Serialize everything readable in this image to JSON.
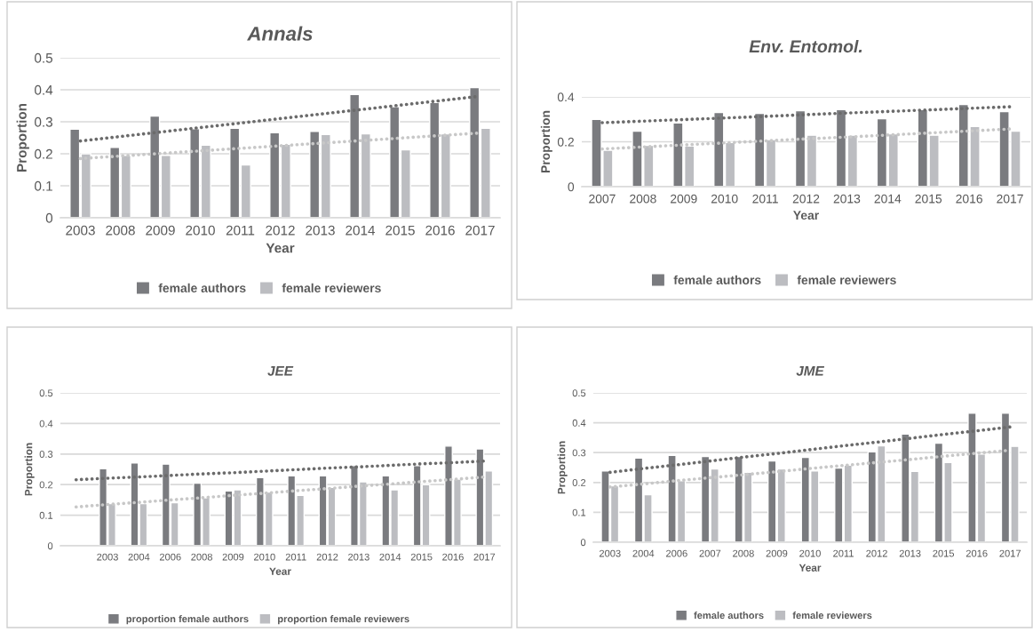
{
  "chart_data": [
    {
      "type": "bar",
      "title": "Annals",
      "xlabel": "Year",
      "ylabel": "Proportion",
      "categories": [
        "2003",
        "2008",
        "2009",
        "2010",
        "2011",
        "2012",
        "2013",
        "2014",
        "2015",
        "2016",
        "2017"
      ],
      "ylim": [
        0,
        0.5
      ],
      "yticks": [
        0,
        0.1,
        0.2,
        0.3,
        0.4,
        0.5
      ],
      "grid": "y",
      "legend": "bottom",
      "series": [
        {
          "name": "female authors",
          "color": "#7a7b7f",
          "values": [
            0.277,
            0.22,
            0.318,
            0.278,
            0.28,
            0.266,
            0.27,
            0.385,
            0.347,
            0.36,
            0.407
          ]
        },
        {
          "name": "female reviewers",
          "color": "#bcbdc1",
          "values": [
            0.2,
            0.195,
            0.195,
            0.227,
            0.165,
            0.23,
            0.26,
            0.262,
            0.212,
            0.262,
            0.28
          ]
        },
        {
          "type": "line",
          "color": "#6b6b6b",
          "line_style": "dotted",
          "values": [
            0.24,
            0.254,
            0.268,
            0.282,
            0.296,
            0.31,
            0.324,
            0.338,
            0.352,
            0.366,
            0.38
          ]
        },
        {
          "type": "line",
          "color": "#c8c8c8",
          "line_style": "dotted",
          "values": [
            0.185,
            0.193,
            0.201,
            0.209,
            0.217,
            0.225,
            0.233,
            0.241,
            0.249,
            0.257,
            0.265
          ]
        }
      ]
    },
    {
      "type": "bar",
      "title": "Env. Entomol.",
      "xlabel": "Year",
      "ylabel": "Proportion",
      "categories": [
        "2007",
        "2008",
        "2009",
        "2010",
        "2011",
        "2012",
        "2013",
        "2014",
        "2015",
        "2016",
        "2017"
      ],
      "ylim": [
        0,
        0.4
      ],
      "yticks": [
        0,
        0.2,
        0.4
      ],
      "grid": "y",
      "legend": "bottom",
      "series": [
        {
          "name": "female authors",
          "color": "#7a7b7f",
          "values": [
            0.3,
            0.247,
            0.284,
            0.33,
            0.327,
            0.338,
            0.343,
            0.303,
            0.343,
            0.366,
            0.334
          ]
        },
        {
          "name": "female reviewers",
          "color": "#bcbdc1",
          "values": [
            0.162,
            0.184,
            0.181,
            0.197,
            0.21,
            0.229,
            0.229,
            0.235,
            0.229,
            0.268,
            0.247
          ]
        },
        {
          "type": "line",
          "color": "#6b6b6b",
          "line_style": "dotted",
          "values": [
            0.285,
            0.292,
            0.299,
            0.306,
            0.313,
            0.321,
            0.328,
            0.335,
            0.342,
            0.349,
            0.356
          ]
        },
        {
          "type": "line",
          "color": "#c8c8c8",
          "line_style": "dotted",
          "values": [
            0.168,
            0.177,
            0.186,
            0.195,
            0.204,
            0.213,
            0.221,
            0.23,
            0.239,
            0.248,
            0.257
          ]
        }
      ]
    },
    {
      "type": "bar",
      "title": "JEE",
      "xlabel": "Year",
      "ylabel": "Proportion",
      "categories": [
        null,
        "2003",
        "2004",
        "2006",
        "2008",
        "2009",
        "2010",
        "2011",
        "2012",
        "2013",
        "2014",
        "2015",
        "2016",
        "2017"
      ],
      "ylim": [
        0,
        0.5
      ],
      "yticks": [
        0,
        0.1,
        0.2,
        0.3,
        0.4,
        0.5
      ],
      "grid": "y",
      "legend": "bottom",
      "series": [
        {
          "name": "proportion female authors",
          "color": "#7a7b7f",
          "values": [
            null,
            0.252,
            0.271,
            0.267,
            0.205,
            0.179,
            0.223,
            0.229,
            0.229,
            0.262,
            0.229,
            0.262,
            0.326,
            0.317
          ]
        },
        {
          "name": "proportion female reviewers",
          "color": "#bcbdc1",
          "values": [
            null,
            0.138,
            0.138,
            0.141,
            0.157,
            0.183,
            0.176,
            0.165,
            0.191,
            0.209,
            0.183,
            0.2,
            0.218,
            0.245
          ]
        },
        {
          "type": "line",
          "color": "#6b6b6b",
          "line_style": "dotted",
          "values": [
            0.216,
            0.221,
            0.225,
            0.23,
            0.235,
            0.239,
            0.244,
            0.249,
            0.254,
            0.258,
            0.263,
            0.268,
            0.272,
            0.277
          ]
        },
        {
          "type": "line",
          "color": "#c8c8c8",
          "line_style": "dotted",
          "values": [
            0.127,
            0.135,
            0.142,
            0.15,
            0.157,
            0.165,
            0.172,
            0.18,
            0.187,
            0.195,
            0.202,
            0.21,
            0.217,
            0.225
          ]
        }
      ]
    },
    {
      "type": "bar",
      "title": "JME",
      "xlabel": "Year",
      "ylabel": "Proportion",
      "categories": [
        "2003",
        "2004",
        "2006",
        "2007",
        "2008",
        "2009",
        "2010",
        "2011",
        "2012",
        "2013",
        "2015",
        "2016",
        "2017"
      ],
      "ylim": [
        0,
        0.5
      ],
      "yticks": [
        0,
        0.1,
        0.2,
        0.3,
        0.4,
        0.5
      ],
      "grid": "y",
      "legend": "bottom",
      "series": [
        {
          "name": "female authors",
          "color": "#7a7b7f",
          "values": [
            0.239,
            0.282,
            0.291,
            0.287,
            0.287,
            0.272,
            0.284,
            0.248,
            0.303,
            0.362,
            0.332,
            0.432,
            0.432
          ]
        },
        {
          "name": "female reviewers",
          "color": "#bcbdc1",
          "values": [
            0.189,
            0.159,
            0.206,
            0.245,
            0.234,
            0.245,
            0.239,
            0.258,
            0.323,
            0.237,
            0.267,
            0.295,
            0.321
          ]
        },
        {
          "type": "line",
          "color": "#6b6b6b",
          "line_style": "dotted",
          "values": [
            0.234,
            0.247,
            0.259,
            0.272,
            0.285,
            0.297,
            0.31,
            0.323,
            0.335,
            0.348,
            0.361,
            0.373,
            0.386
          ]
        },
        {
          "type": "line",
          "color": "#c8c8c8",
          "line_style": "dotted",
          "values": [
            0.185,
            0.195,
            0.206,
            0.216,
            0.226,
            0.236,
            0.247,
            0.257,
            0.267,
            0.277,
            0.288,
            0.298,
            0.308
          ]
        }
      ]
    }
  ]
}
